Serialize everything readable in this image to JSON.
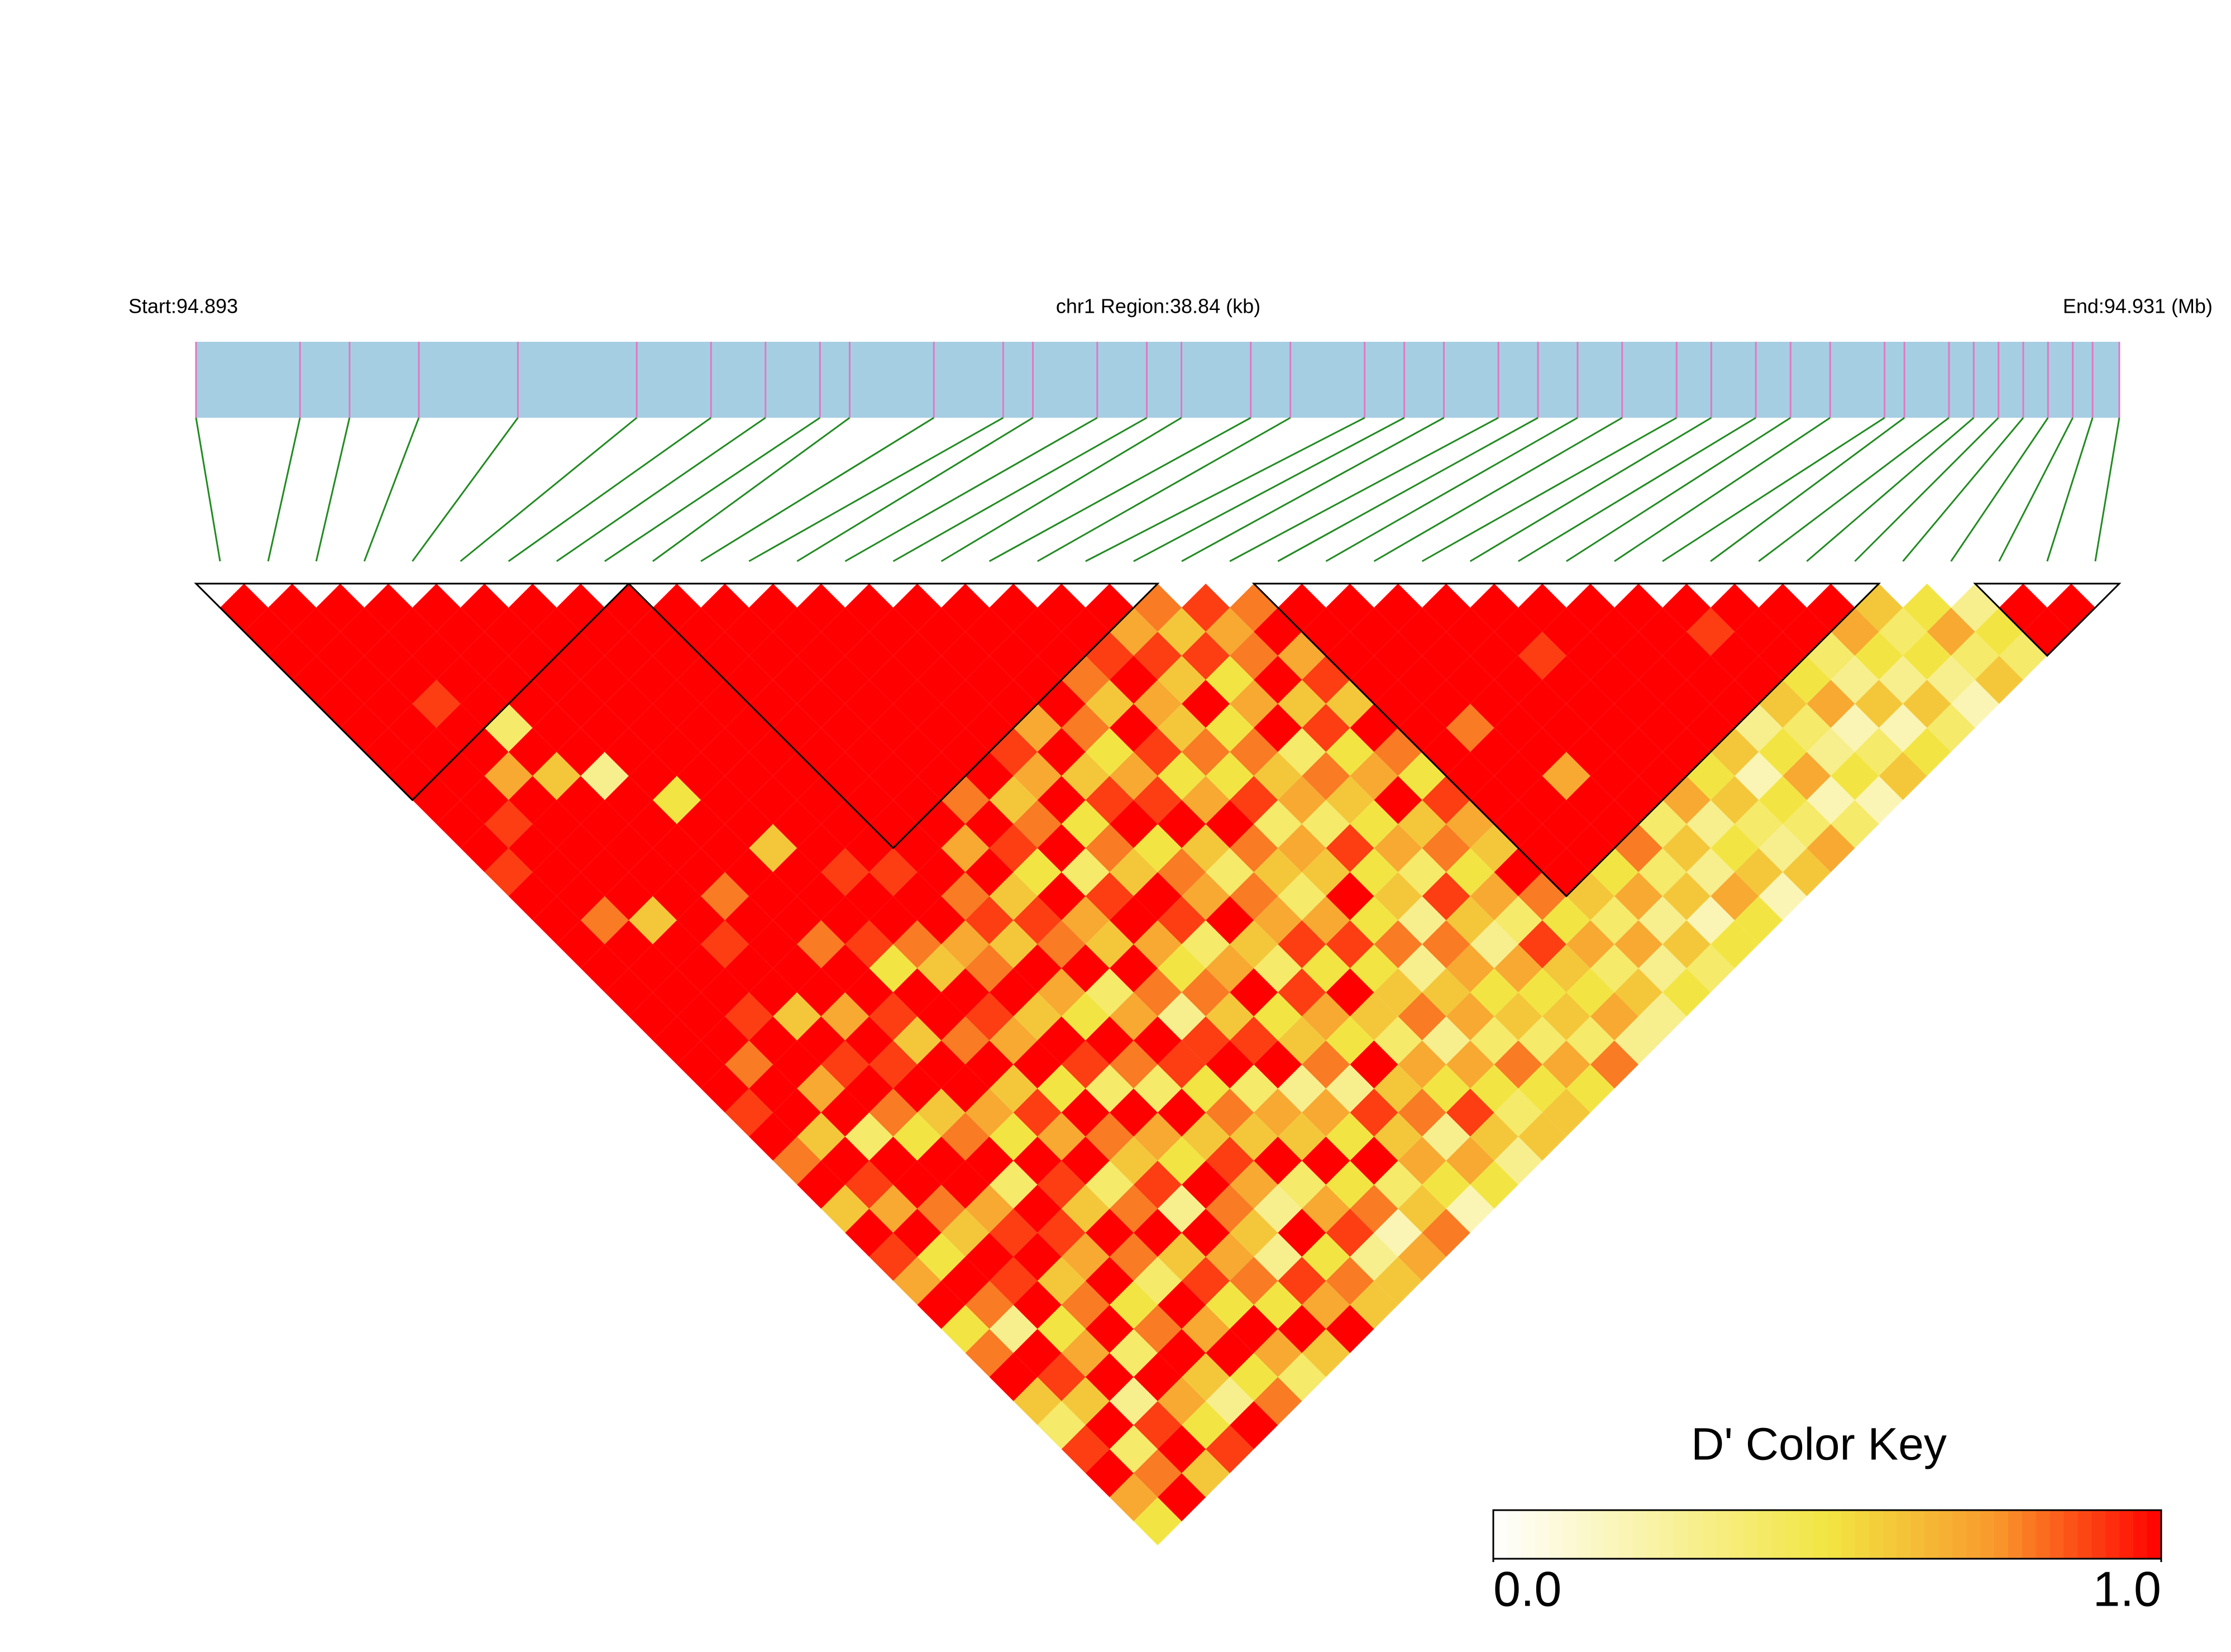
{
  "chart_data": {
    "type": "ld_heatmap",
    "start_label": "Start:94.893",
    "region_label": "chr1 Region:38.84 (kb)",
    "end_label": "End:94.931 (Mb)",
    "region_kb": 38.84,
    "positions": [
      0,
      2.1,
      3.1,
      4.5,
      6.5,
      8.9,
      10.4,
      11.5,
      12.6,
      13.2,
      14.9,
      16.3,
      16.9,
      18.2,
      19.2,
      19.9,
      21.3,
      22.1,
      23.6,
      24.4,
      25.2,
      26.3,
      27.1,
      27.9,
      28.8,
      29.9,
      30.6,
      31.5,
      32.2,
      33.0,
      34.1,
      34.5,
      35.4,
      35.9,
      36.4,
      36.9,
      37.4,
      37.9,
      38.3,
      38.84
    ],
    "bar_color": "#a6cee3",
    "tick_color": "#e377c2",
    "connector_color": "#228b22",
    "blocks": [
      [
        0,
        8
      ],
      [
        9,
        19
      ],
      [
        22,
        34
      ],
      [
        37,
        39
      ]
    ],
    "ld": [
      [
        1,
        1,
        1,
        1,
        1,
        1,
        1,
        1,
        1,
        1,
        1,
        0.9,
        1,
        1,
        1,
        1,
        1,
        1,
        1,
        1,
        1,
        0.9,
        1,
        0.8,
        1,
        0.6,
        1,
        0.9,
        0.7,
        1,
        0.5,
        0.8,
        1,
        0.6,
        0.4,
        0.9,
        1,
        0.7,
        0.5
      ],
      [
        1,
        1,
        1,
        1,
        1,
        1,
        1,
        1,
        1,
        0.9,
        1,
        1,
        1,
        0.8,
        1,
        1,
        1,
        1,
        1,
        0.8,
        1,
        1,
        0.6,
        1,
        0.9,
        0.7,
        1,
        0.5,
        1,
        0.8,
        0.3,
        1,
        0.9,
        0.6,
        1,
        0.4,
        0.8,
        1
      ],
      [
        1,
        1,
        1,
        1,
        0.9,
        1,
        1,
        0.7,
        1,
        1,
        1,
        1,
        1,
        0.6,
        1,
        1,
        1,
        0.9,
        1,
        1,
        0.7,
        1,
        0.4,
        1,
        1,
        0.8,
        0.6,
        1,
        0.9,
        1,
        0.5,
        0.7,
        1,
        0.3,
        0.9,
        1,
        0.6
      ],
      [
        1,
        1,
        1,
        1,
        1,
        0.4,
        1,
        0.6,
        1,
        1,
        1,
        1,
        1,
        1,
        0.9,
        1,
        1,
        0.6,
        1,
        0.9,
        1,
        0.8,
        0.5,
        1,
        1,
        0.7,
        0.9,
        1,
        0.6,
        0.8,
        1,
        0.4,
        1,
        0.7,
        0.5,
        0.9
      ],
      [
        1,
        1,
        1,
        1,
        1,
        1,
        1,
        0.3,
        1,
        1,
        1,
        1,
        0.8,
        1,
        1,
        1,
        1,
        0.7,
        1,
        0.9,
        1,
        0.6,
        0.8,
        1,
        0.4,
        1,
        0.9,
        0.7,
        1,
        0.5,
        0.8,
        1,
        0.6,
        0.3,
        1
      ],
      [
        1,
        1,
        1,
        1,
        1,
        1,
        1,
        1,
        0.5,
        1,
        1,
        1,
        1,
        1,
        0.8,
        1,
        1,
        0.9,
        0.6,
        1,
        1,
        0.7,
        0.5,
        1,
        0.9,
        0.6,
        1,
        0.8,
        0.4,
        1,
        0.7,
        1,
        0.5,
        0.8
      ],
      [
        1,
        1,
        1,
        1,
        1,
        1,
        1,
        1,
        1,
        1,
        0.6,
        1,
        1,
        1,
        0.9,
        0.5,
        1,
        1,
        0.8,
        1,
        0.6,
        0.9,
        0.7,
        1,
        0.4,
        0.8,
        1,
        0.6,
        0.9,
        0.5,
        1,
        0.7,
        0.4
      ],
      [
        1,
        1,
        1,
        1,
        1,
        1,
        1,
        1,
        1,
        1,
        1,
        0.9,
        1,
        1,
        0.8,
        0.6,
        1,
        0.9,
        0.7,
        1,
        0.5,
        1,
        0.8,
        0.6,
        0.9,
        0.3,
        1,
        0.7,
        0.8,
        0.5,
        1,
        0.6
      ],
      [
        1,
        1,
        1,
        1,
        1,
        1,
        1,
        1,
        1,
        1,
        1,
        0.9,
        1,
        1,
        0.7,
        0.8,
        1,
        0.6,
        1,
        0.9,
        0.4,
        1,
        0.7,
        0.5,
        1,
        0.8,
        0.6,
        0.3,
        0.9,
        0.7,
        1
      ],
      [
        1,
        1,
        1,
        1,
        1,
        1,
        1,
        1,
        1,
        1,
        1,
        1,
        0.8,
        0.9,
        0.6,
        1,
        0.7,
        0.5,
        1,
        0.8,
        0.4,
        1,
        0.6,
        0.9,
        0.7,
        0.3,
        1,
        0.5,
        0.8,
        0.6
      ],
      [
        1,
        1,
        1,
        1,
        1,
        1,
        1,
        1,
        1,
        1,
        0.7,
        1,
        0.6,
        0.9,
        0.8,
        1,
        0.4,
        0.7,
        1,
        0.9,
        0.5,
        0.8,
        0.6,
        1,
        0.4,
        0.7,
        0.9,
        0.3,
        0.6
      ],
      [
        1,
        1,
        1,
        1,
        1,
        1,
        1,
        1,
        0.8,
        1,
        0.9,
        0.5,
        1,
        0.7,
        0.6,
        1,
        0.8,
        0.3,
        0.9,
        1,
        0.4,
        0.7,
        0.6,
        1,
        0.5,
        0.8,
        0.2,
        0.7
      ],
      [
        1,
        1,
        1,
        1,
        1,
        1,
        1,
        1,
        0.6,
        0.8,
        1,
        0.4,
        0.9,
        1,
        0.7,
        0.5,
        0.8,
        0.6,
        0.9,
        1,
        0.3,
        0.7,
        0.5,
        1,
        0.4,
        0.6,
        0.8
      ],
      [
        1,
        1,
        1,
        1,
        1,
        1,
        0.9,
        0.7,
        1,
        0.5,
        0.8,
        0.6,
        1,
        0.9,
        0.4,
        0.7,
        1,
        0.5,
        0.6,
        0.8,
        0.3,
        0.9,
        0.6,
        0.7,
        0.5,
        0.2
      ],
      [
        1,
        1,
        1,
        1,
        1,
        0.7,
        1,
        0.6,
        0.9,
        1,
        0.5,
        0.8,
        0.7,
        1,
        0.6,
        0.4,
        0.9,
        0.7,
        0.5,
        1,
        0.6,
        0.8,
        0.3,
        0.7,
        0.5
      ],
      [
        1,
        1,
        1,
        1,
        1,
        0.8,
        0.5,
        0.7,
        0.9,
        1,
        0.6,
        0.4,
        0.8,
        0.7,
        0.9,
        0.5,
        1,
        0.6,
        0.4,
        0.7,
        0.5,
        0.9,
        0.6,
        0.3
      ],
      [
        1,
        1,
        1,
        0.8,
        0.6,
        1,
        0.9,
        0.5,
        0.7,
        1,
        0.8,
        0.6,
        0.4,
        0.7,
        0.9,
        0.5,
        0.6,
        0.8,
        0.3,
        0.7,
        0.5,
        0.4,
        0.6
      ],
      [
        1,
        1,
        0.9,
        1,
        0.7,
        0.6,
        0.8,
        0.5,
        0.9,
        0.4,
        0.7,
        0.6,
        1,
        0.5,
        0.8,
        0.3,
        0.6,
        0.7,
        0.4,
        0.8,
        0.5,
        0.6
      ],
      [
        1,
        0.7,
        0.9,
        0.6,
        1,
        0.5,
        0.8,
        0.6,
        0.7,
        0.4,
        0.9,
        0.5,
        0.6,
        0.3,
        0.8,
        0.7,
        0.5,
        0.6,
        0.4,
        0.7,
        0.5
      ],
      [
        0.8,
        0.6,
        0.9,
        0.5,
        0.7,
        1,
        0.4,
        0.8,
        0.6,
        0.5,
        0.7,
        0.4,
        0.9,
        0.6,
        0.3,
        0.7,
        0.5,
        0.6,
        0.4,
        0.8
      ],
      [
        0.9,
        0.7,
        0.8,
        1,
        0.6,
        0.9,
        0.5,
        0.7,
        1,
        0.6,
        0.8,
        0.5,
        0.7,
        0.4,
        0.9,
        0.6,
        0.5,
        0.7,
        0.3
      ],
      [
        0.8,
        1,
        0.7,
        0.9,
        0.6,
        1,
        0.8,
        0.5,
        0.9,
        0.7,
        0.6,
        1,
        0.8,
        0.5,
        0.7,
        0.4,
        0.6,
        0.3
      ],
      [
        1,
        1,
        1,
        1,
        1,
        1,
        1,
        1,
        1,
        1,
        1,
        1,
        0.6,
        0.4,
        0.7,
        0.3,
        0.5
      ],
      [
        1,
        1,
        1,
        1,
        1,
        0.8,
        1,
        1,
        1,
        1,
        1,
        0.5,
        0.7,
        0.3,
        0.6,
        0.4
      ],
      [
        1,
        1,
        1,
        1,
        1,
        1,
        1,
        0.7,
        1,
        1,
        0.8,
        0.4,
        0.6,
        0.2,
        0.5
      ],
      [
        1,
        1,
        1,
        1,
        1,
        1,
        1,
        1,
        1,
        0.4,
        0.6,
        0.3,
        0.7,
        0.5
      ],
      [
        1,
        1,
        0.9,
        1,
        1,
        1,
        1,
        1,
        0.7,
        0.3,
        0.5,
        0.6,
        0.2
      ],
      [
        1,
        1,
        1,
        1,
        1,
        1,
        1,
        0.5,
        0.6,
        0.4,
        0.3,
        0.6
      ],
      [
        1,
        1,
        1,
        1,
        1,
        1,
        0.6,
        0.2,
        0.5,
        0.4,
        0.7
      ],
      [
        1,
        1,
        1,
        1,
        1,
        0.3,
        0.5,
        0.7,
        0.2,
        0.4
      ],
      [
        1,
        0.9,
        1,
        1,
        0.6,
        0.4,
        0.3,
        0.5,
        0.2
      ],
      [
        1,
        1,
        1,
        0.5,
        0.7,
        0.2,
        0.4,
        0.6
      ],
      [
        1,
        1,
        0.4,
        0.3,
        0.6,
        0.2,
        0.5
      ],
      [
        1,
        0.7,
        0.5,
        0.3,
        0.6,
        0.4
      ],
      [
        0.6,
        0.4,
        0.5,
        0.3,
        0.2
      ],
      [
        0.5,
        0.7,
        0.4,
        0.6
      ],
      [
        0.3,
        0.5,
        0.4
      ],
      [
        1,
        1
      ],
      [
        1
      ]
    ],
    "colorbar_title": "D' Color Key",
    "colorbar_lim": [
      0,
      1
    ],
    "colorbar_ticks": [
      {
        "value": 0,
        "label": "0.0"
      },
      {
        "value": 1,
        "label": "1.0"
      }
    ],
    "colormap": [
      {
        "value": 0,
        "color": "#ffffff"
      },
      {
        "value": 0.5,
        "color": "#f2e543"
      },
      {
        "value": 0.75,
        "color": "#f89a2c"
      },
      {
        "value": 1,
        "color": "#ff0000"
      }
    ]
  }
}
